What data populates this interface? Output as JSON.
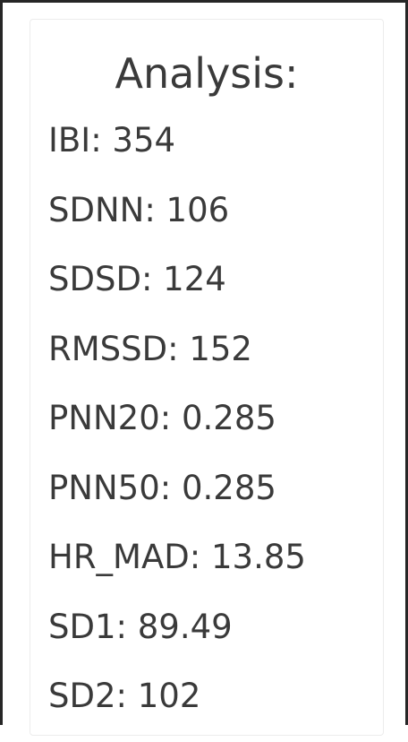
{
  "analysis": {
    "title": "Analysis:",
    "metrics": [
      {
        "text": "IBI: 354"
      },
      {
        "text": "SDNN: 106"
      },
      {
        "text": "SDSD: 124"
      },
      {
        "text": "RMSSD: 152"
      },
      {
        "text": "PNN20: 0.285"
      },
      {
        "text": "PNN50: 0.285"
      },
      {
        "text": "HR_MAD: 13.85"
      },
      {
        "text": "SD1: 89.49"
      },
      {
        "text": "SD2: 102"
      }
    ]
  }
}
